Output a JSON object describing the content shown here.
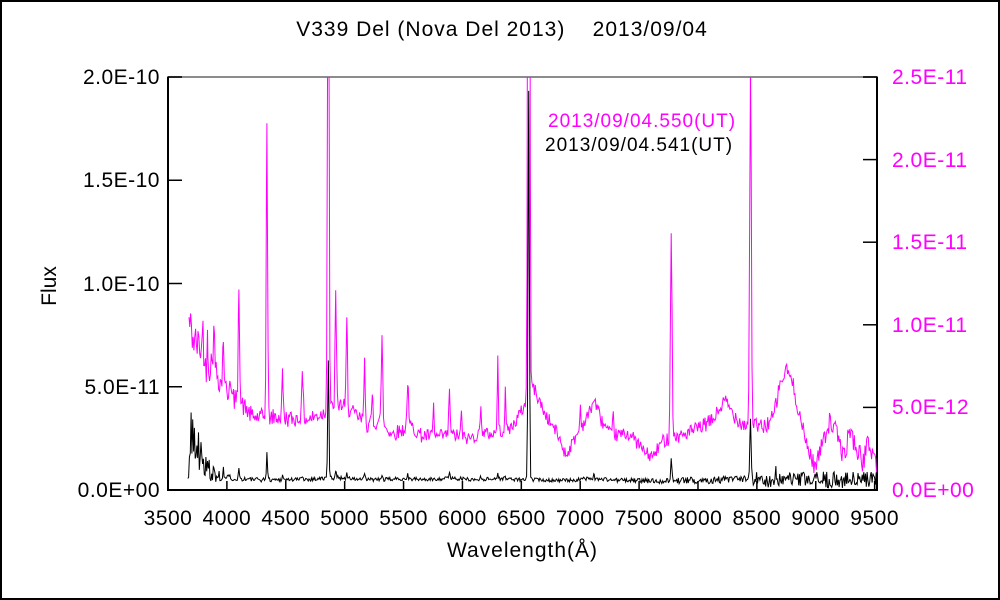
{
  "figure": {
    "title": "V339 Del (Nova Del 2013)    2013/09/04",
    "x_axis": {
      "label": "Wavelength(Å)"
    },
    "y_left": {
      "label": "Flux"
    },
    "legend": [
      {
        "label": "2013/09/04.550(UT)",
        "color": "#ff00ff"
      },
      {
        "label": "2013/09/04.541(UT)",
        "color": "#000000"
      }
    ]
  },
  "chart_data": {
    "type": "line",
    "title": "V339 Del (Nova Del 2013)    2013/09/04",
    "xlabel": "Wavelength(Å)",
    "ylabel": "Flux",
    "x_range": [
      3500,
      9520
    ],
    "x_ticks": [
      3500,
      4000,
      4500,
      5000,
      5500,
      6000,
      6500,
      7000,
      7500,
      8000,
      8500,
      9000,
      9500
    ],
    "grid": false,
    "legend_position": "upper middle, text only",
    "frame": {
      "top_border_color": "#8c8c8c",
      "other_border_color": "#000000"
    },
    "left_axis": {
      "range": [
        0,
        2e-10
      ],
      "tick_labels": [
        "0.0E+00",
        "5.0E-11",
        "1.0E-10",
        "1.5E-10",
        "2.0E-10"
      ],
      "tick_values_e12": [
        0,
        50,
        100,
        150,
        200
      ],
      "color": "#000000"
    },
    "right_axis": {
      "range": [
        0,
        2.5e-11
      ],
      "tick_labels": [
        "0.0E+00",
        "5.0E-12",
        "1.0E-11",
        "1.5E-11",
        "2.0E-11",
        "2.5E-11"
      ],
      "tick_values_e12": [
        0,
        5,
        10,
        15,
        20,
        25
      ],
      "color": "#ff00ff"
    },
    "value_unit_note": "continuum / line-peak / noise values are in 1e-12 flux units of each series' own axis; emission_lines entries are [center_angstrom, peak_above_continuum, sigma_angstrom]; lines taller than axis max are clipped at plot top",
    "series": [
      {
        "name": "2013/09/04.550(UT)",
        "color": "#ff00ff",
        "axis": "right",
        "start_wavelength": 3678,
        "continuum": [
          [
            3678,
            10.2
          ],
          [
            3720,
            9.0
          ],
          [
            3780,
            8.6
          ],
          [
            3830,
            6.9
          ],
          [
            3870,
            7.8
          ],
          [
            3910,
            7.2
          ],
          [
            3960,
            6.3
          ],
          [
            4040,
            5.6
          ],
          [
            4150,
            5.0
          ],
          [
            4220,
            4.4
          ],
          [
            4300,
            4.4
          ],
          [
            4420,
            4.4
          ],
          [
            4550,
            4.3
          ],
          [
            4700,
            4.3
          ],
          [
            4800,
            4.6
          ],
          [
            4960,
            5.2
          ],
          [
            5080,
            4.6
          ],
          [
            5200,
            3.9
          ],
          [
            5300,
            4.2
          ],
          [
            5400,
            3.4
          ],
          [
            5480,
            3.6
          ],
          [
            5560,
            3.9
          ],
          [
            5650,
            3.3
          ],
          [
            5780,
            3.2
          ],
          [
            5850,
            3.3
          ],
          [
            5950,
            3.3
          ],
          [
            6050,
            3.1
          ],
          [
            6150,
            3.4
          ],
          [
            6250,
            3.4
          ],
          [
            6420,
            3.8
          ],
          [
            6520,
            5.0
          ],
          [
            6600,
            6.3
          ],
          [
            6700,
            4.6
          ],
          [
            6800,
            3.5
          ],
          [
            6880,
            2.1
          ],
          [
            6960,
            3.2
          ],
          [
            7060,
            4.4
          ],
          [
            7120,
            5.5
          ],
          [
            7180,
            4.2
          ],
          [
            7260,
            3.3
          ],
          [
            7420,
            3.4
          ],
          [
            7560,
            2.2
          ],
          [
            7620,
            2.0
          ],
          [
            7700,
            3.0
          ],
          [
            7860,
            3.3
          ],
          [
            8000,
            3.7
          ],
          [
            8120,
            4.2
          ],
          [
            8230,
            5.4
          ],
          [
            8300,
            4.6
          ],
          [
            8380,
            4.0
          ],
          [
            8560,
            3.8
          ],
          [
            8640,
            4.4
          ],
          [
            8700,
            6.5
          ],
          [
            8760,
            7.3
          ],
          [
            8820,
            6.0
          ],
          [
            8900,
            3.3
          ],
          [
            8990,
            1.4
          ],
          [
            9060,
            2.8
          ],
          [
            9120,
            4.2
          ],
          [
            9180,
            3.4
          ],
          [
            9240,
            1.9
          ],
          [
            9290,
            3.7
          ],
          [
            9340,
            2.6
          ],
          [
            9400,
            1.7
          ],
          [
            9450,
            2.9
          ],
          [
            9520,
            1.6
          ]
        ],
        "emission_lines": [
          [
            3797,
            2.0,
            7
          ],
          [
            3835,
            2.5,
            7
          ],
          [
            3889,
            3.0,
            7
          ],
          [
            3970,
            3.2,
            8
          ],
          [
            4026,
            1.5,
            7
          ],
          [
            4102,
            7.5,
            8
          ],
          [
            4340,
            18.0,
            8
          ],
          [
            4472,
            2.6,
            8
          ],
          [
            4640,
            2.4,
            11
          ],
          [
            4861,
            36,
            9
          ],
          [
            4924,
            7.0,
            8
          ],
          [
            5018,
            5.2,
            8
          ],
          [
            5169,
            3.6,
            8
          ],
          [
            5235,
            1.8,
            7
          ],
          [
            5317,
            5.6,
            8
          ],
          [
            5535,
            2.9,
            8
          ],
          [
            5755,
            1.8,
            7
          ],
          [
            5890,
            2.9,
            8
          ],
          [
            5991,
            1.4,
            7
          ],
          [
            6157,
            2.0,
            7
          ],
          [
            6300,
            4.4,
            6
          ],
          [
            6364,
            2.2,
            6
          ],
          [
            6563,
            75,
            10
          ],
          [
            7002,
            1.4,
            7
          ],
          [
            7281,
            1.2,
            7
          ],
          [
            7773,
            12.2,
            10
          ],
          [
            8446,
            21.8,
            10
          ],
          [
            9069,
            1.0,
            7
          ]
        ],
        "noise_amplitude": [
          [
            3678,
            1.3
          ],
          [
            3800,
            1.0
          ],
          [
            3950,
            0.8
          ],
          [
            4200,
            0.55
          ],
          [
            4600,
            0.5
          ],
          [
            5000,
            0.5
          ],
          [
            5500,
            0.45
          ],
          [
            6000,
            0.4
          ],
          [
            7000,
            0.4
          ],
          [
            7500,
            0.4
          ],
          [
            8000,
            0.45
          ],
          [
            8500,
            0.5
          ],
          [
            9000,
            0.55
          ],
          [
            9250,
            0.6
          ],
          [
            9520,
            0.7
          ]
        ]
      },
      {
        "name": "2013/09/04.541(UT)",
        "color": "#000000",
        "axis": "left",
        "start_wavelength": 3668,
        "continuum": [
          [
            3668,
            10
          ],
          [
            3700,
            13
          ],
          [
            3740,
            12
          ],
          [
            3790,
            10
          ],
          [
            3850,
            7
          ],
          [
            3950,
            6
          ],
          [
            4100,
            5.5
          ],
          [
            4250,
            5
          ],
          [
            4450,
            5
          ],
          [
            4700,
            5.2
          ],
          [
            4940,
            6
          ],
          [
            5100,
            5.2
          ],
          [
            5300,
            5
          ],
          [
            5500,
            5.5
          ],
          [
            5700,
            5
          ],
          [
            5900,
            5.8
          ],
          [
            6100,
            5
          ],
          [
            6300,
            5.6
          ],
          [
            6500,
            5
          ],
          [
            6650,
            5
          ],
          [
            6900,
            4.6
          ],
          [
            7100,
            5.6
          ],
          [
            7300,
            4.8
          ],
          [
            7600,
            4.4
          ],
          [
            7900,
            4.6
          ],
          [
            8200,
            5
          ],
          [
            8400,
            5
          ],
          [
            8600,
            4.4
          ],
          [
            8800,
            5
          ],
          [
            9000,
            4.6
          ],
          [
            9200,
            5
          ],
          [
            9350,
            4.4
          ],
          [
            9520,
            5
          ]
        ],
        "emission_lines": [
          [
            3696,
            26,
            5
          ],
          [
            3710,
            21,
            5
          ],
          [
            3724,
            17,
            5
          ],
          [
            3745,
            14,
            5
          ],
          [
            3759,
            18,
            5
          ],
          [
            3780,
            12,
            5
          ],
          [
            3801,
            10,
            5
          ],
          [
            3822,
            8,
            5
          ],
          [
            3835,
            7,
            5
          ],
          [
            3850,
            6,
            5
          ],
          [
            3889,
            6,
            5
          ],
          [
            3934,
            4,
            5
          ],
          [
            3970,
            5,
            5
          ],
          [
            4026,
            3,
            5
          ],
          [
            4102,
            5,
            6
          ],
          [
            4340,
            14,
            6
          ],
          [
            4472,
            2.5,
            6
          ],
          [
            4640,
            2,
            8
          ],
          [
            4861,
            57,
            7
          ],
          [
            4924,
            4,
            6
          ],
          [
            5018,
            3.5,
            6
          ],
          [
            5169,
            2.5,
            6
          ],
          [
            5317,
            2,
            6
          ],
          [
            5535,
            2.5,
            6
          ],
          [
            5890,
            3,
            6
          ],
          [
            6157,
            1.5,
            6
          ],
          [
            6300,
            2.5,
            5
          ],
          [
            6364,
            1.5,
            5
          ],
          [
            6563,
            188,
            8
          ],
          [
            7065,
            1.5,
            6
          ],
          [
            7115,
            2,
            6
          ],
          [
            7773,
            9.5,
            8
          ],
          [
            8446,
            28,
            8
          ],
          [
            8498,
            4,
            6
          ],
          [
            8542,
            4,
            6
          ],
          [
            8662,
            4,
            6
          ],
          [
            9069,
            3,
            6
          ]
        ],
        "noise_amplitude": [
          [
            3668,
            7
          ],
          [
            3700,
            8
          ],
          [
            3780,
            6
          ],
          [
            3850,
            3.5
          ],
          [
            3950,
            2
          ],
          [
            4100,
            1.2
          ],
          [
            4500,
            1.0
          ],
          [
            5000,
            1.0
          ],
          [
            5600,
            0.9
          ],
          [
            6200,
            0.9
          ],
          [
            6800,
            0.9
          ],
          [
            7200,
            1.0
          ],
          [
            7600,
            1.2
          ],
          [
            7900,
            1.6
          ],
          [
            8100,
            1.8
          ],
          [
            8400,
            2.0
          ],
          [
            8600,
            3.2
          ],
          [
            8800,
            3.6
          ],
          [
            9000,
            4.0
          ],
          [
            9200,
            4.2
          ],
          [
            9350,
            4.5
          ],
          [
            9520,
            4.5
          ]
        ]
      }
    ]
  }
}
